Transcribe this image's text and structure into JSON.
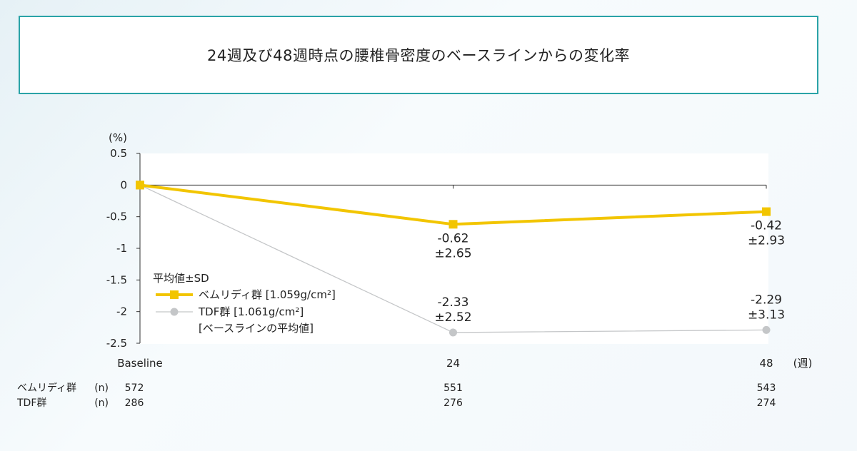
{
  "header": {
    "title": "24週及び48週時点の腰椎骨密度のベースラインからの変化率"
  },
  "chart_data": {
    "type": "line",
    "ylabel": "(%)",
    "xlabel": "(週)",
    "x": [
      0,
      24,
      48
    ],
    "x_tick_labels": [
      "Baseline",
      "24",
      "48"
    ],
    "ylim": [
      -2.5,
      0.5
    ],
    "y_ticks": [
      0.5,
      0,
      -0.5,
      -1,
      -1.5,
      -2,
      -2.5
    ],
    "y_tick_labels": [
      "0.5",
      "0",
      "-0.5",
      "-1",
      "-1.5",
      "-2",
      "-2.5"
    ],
    "legend_title": "平均値±SD",
    "legend_position": "bottom-left",
    "series": [
      {
        "name": "ベムリディ群 [1.059g/cm²]",
        "color": "#f2c500",
        "marker": "square",
        "values": [
          0,
          -0.62,
          -0.42
        ],
        "annotations": [
          null,
          [
            "-0.62",
            "±2.65"
          ],
          [
            "-0.42",
            "±2.93"
          ]
        ]
      },
      {
        "name": "TDF群 [1.061g/cm²]",
        "name_line2": "[ベースラインの平均値]",
        "color": "#c4c6c8",
        "marker": "circle",
        "values": [
          0,
          -2.33,
          -2.29
        ],
        "annotations": [
          null,
          [
            "-2.33",
            "±2.52"
          ],
          [
            "-2.29",
            "±3.13"
          ]
        ]
      }
    ],
    "n_table": [
      {
        "label": "ベムリディ群",
        "unit": "(n)",
        "values": [
          "572",
          "551",
          "543"
        ]
      },
      {
        "label": "TDF群",
        "unit": "(n)",
        "values": [
          "286",
          "276",
          "274"
        ]
      }
    ]
  }
}
